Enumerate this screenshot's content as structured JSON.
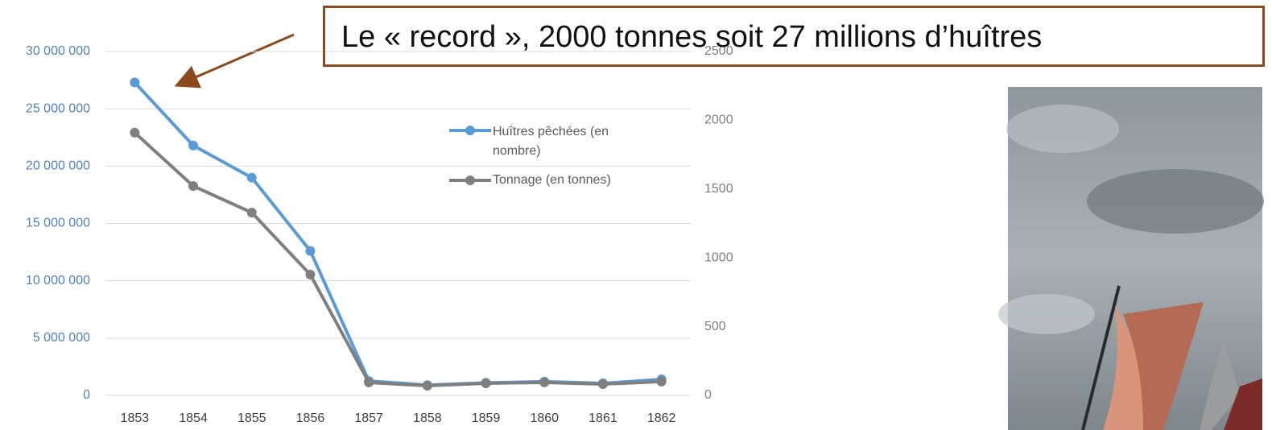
{
  "chart_data": {
    "type": "line",
    "annotation": "Le « record », 2000 tonnes soit 27 millions d’huîtres",
    "categories": [
      "1853",
      "1854",
      "1855",
      "1856",
      "1857",
      "1858",
      "1859",
      "1860",
      "1861",
      "1862"
    ],
    "series": [
      {
        "name": "Huîtres pêchées (en nombre)",
        "color": "#5b9bd5",
        "values": [
          27300000,
          21800000,
          19000000,
          12600000,
          1260000,
          900000,
          1100000,
          1200000,
          1050000,
          1400000
        ]
      },
      {
        "name": "Tonnage (en tonnes)",
        "color": "#7f7f7f",
        "axis": "y2",
        "values": [
          1910,
          1522,
          1329,
          878,
          94,
          70,
          88,
          94,
          82,
          100
        ]
      }
    ],
    "ylim": [
      0,
      30000000
    ],
    "yticks": [
      0,
      {
        "value": 5000000,
        "label": "5 000 000"
      },
      {
        "value": 10000000,
        "label": "10 000 000"
      },
      {
        "value": 15000000,
        "label": "15 000 000"
      },
      {
        "value": 20000000,
        "label": "20 000 000"
      },
      {
        "value": 25000000,
        "label": "25 000 000"
      },
      {
        "value": 30000000,
        "label": "30 000 000"
      }
    ],
    "y2lim": [
      0,
      2500
    ],
    "y2ticks": [
      0,
      500,
      1000,
      1500,
      2000,
      2500
    ],
    "grid": true
  }
}
